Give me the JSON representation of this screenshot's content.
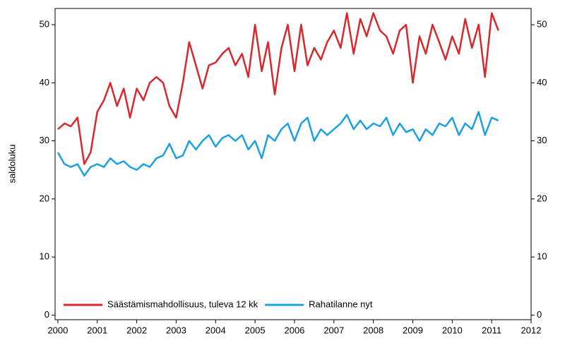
{
  "chart_data": {
    "type": "line",
    "y_label": "saldoluku",
    "x": [
      2000,
      2000.17,
      2000.33,
      2000.5,
      2000.67,
      2000.83,
      2001,
      2001.17,
      2001.33,
      2001.5,
      2001.67,
      2001.83,
      2002,
      2002.17,
      2002.33,
      2002.5,
      2002.67,
      2002.83,
      2003,
      2003.17,
      2003.33,
      2003.5,
      2003.67,
      2003.83,
      2004,
      2004.17,
      2004.33,
      2004.5,
      2004.67,
      2004.83,
      2005,
      2005.17,
      2005.33,
      2005.5,
      2005.67,
      2005.83,
      2006,
      2006.17,
      2006.33,
      2006.5,
      2006.67,
      2006.83,
      2007,
      2007.17,
      2007.33,
      2007.5,
      2007.67,
      2007.83,
      2008,
      2008.17,
      2008.33,
      2008.5,
      2008.67,
      2008.83,
      2009,
      2009.17,
      2009.33,
      2009.5,
      2009.67,
      2009.83,
      2010,
      2010.17,
      2010.33,
      2010.5,
      2010.67,
      2010.83,
      2011,
      2011.17
    ],
    "series": [
      {
        "name": "Säästämismahdollisuus, tuleva 12 kk",
        "color": "#d9272e",
        "values": [
          32,
          33,
          32.5,
          34,
          26,
          28,
          35,
          37,
          40,
          36,
          39,
          34,
          39,
          37,
          40,
          41,
          40,
          36,
          34,
          40,
          47,
          43,
          39,
          43,
          43.5,
          45,
          46,
          43,
          45,
          41,
          50,
          42,
          47,
          38,
          46,
          50,
          42,
          50,
          43,
          46,
          44,
          47,
          49,
          46,
          52,
          45,
          51,
          48,
          52,
          49,
          48,
          45,
          49,
          50,
          40,
          48,
          45,
          50,
          47,
          44,
          48,
          45,
          51,
          46,
          50,
          41,
          52,
          49
        ]
      },
      {
        "name": "Rahatilanne nyt",
        "color": "#1ba1e2",
        "values": [
          28,
          26,
          25.5,
          26,
          24,
          25.5,
          26,
          25.5,
          27,
          26,
          26.5,
          25.5,
          25,
          26,
          25.5,
          27,
          27.5,
          29.5,
          27,
          27.5,
          30,
          28.5,
          30,
          31,
          29,
          30.5,
          31,
          30,
          31,
          28.5,
          30,
          27,
          31,
          30,
          32,
          33,
          30,
          33,
          34,
          30,
          32,
          31,
          32,
          33,
          34.5,
          32,
          33.5,
          32,
          33,
          32.5,
          34,
          31,
          33,
          31.5,
          32,
          30,
          32,
          31,
          33,
          32.5,
          34,
          31,
          33,
          32,
          35,
          31,
          34,
          33.5
        ]
      }
    ],
    "xlim": [
      1999.93,
      2012
    ],
    "xticks": [
      2000,
      2001,
      2002,
      2003,
      2004,
      2005,
      2006,
      2007,
      2008,
      2009,
      2010,
      2011,
      2012
    ],
    "ylim": [
      -0.8,
      52.8
    ],
    "yticks": [
      0,
      10,
      20,
      30,
      40,
      50
    ],
    "legend": "bottom-left"
  }
}
